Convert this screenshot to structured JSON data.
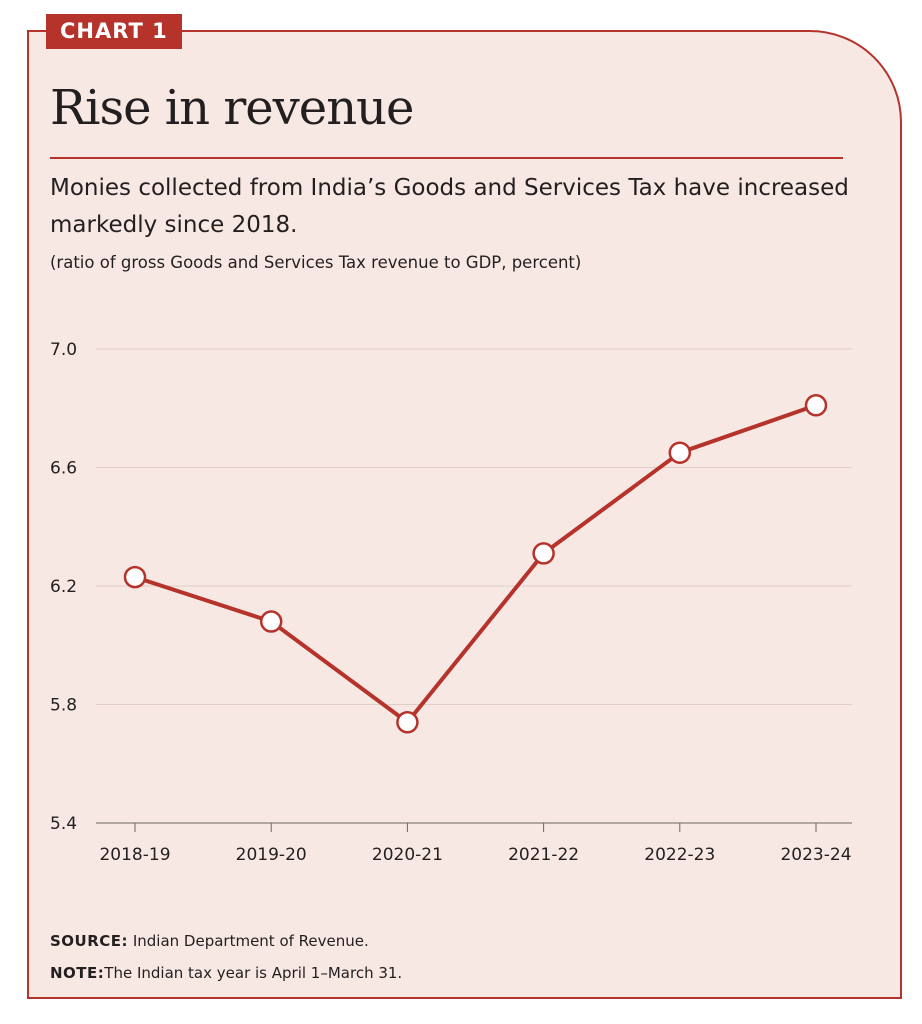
{
  "tag": "CHART 1",
  "title": "Rise in revenue",
  "subtitle": "Monies collected from India’s Goods and Services Tax have increased markedly since 2018.",
  "units": "(ratio of gross Goods and Services Tax revenue to GDP, percent)",
  "source": {
    "label": "SOURCE:",
    "text": "Indian Department of Revenue."
  },
  "note": {
    "label": "NOTE:",
    "text": "The Indian tax year is April 1–March 31."
  },
  "colors": {
    "accent": "#b5332b",
    "background": "#f8e8e3",
    "marker_fill": "#ffffff"
  },
  "chart_data": {
    "type": "line",
    "categories": [
      "2018-19",
      "2019-20",
      "2020-21",
      "2021-22",
      "2022-23",
      "2023-24"
    ],
    "values": [
      6.23,
      6.08,
      5.74,
      6.31,
      6.65,
      6.81
    ],
    "ylim": [
      5.4,
      7.0
    ],
    "yticks": [
      "5.4",
      "5.8",
      "6.2",
      "6.6",
      "7.0"
    ],
    "grid": true,
    "legend": "none"
  }
}
